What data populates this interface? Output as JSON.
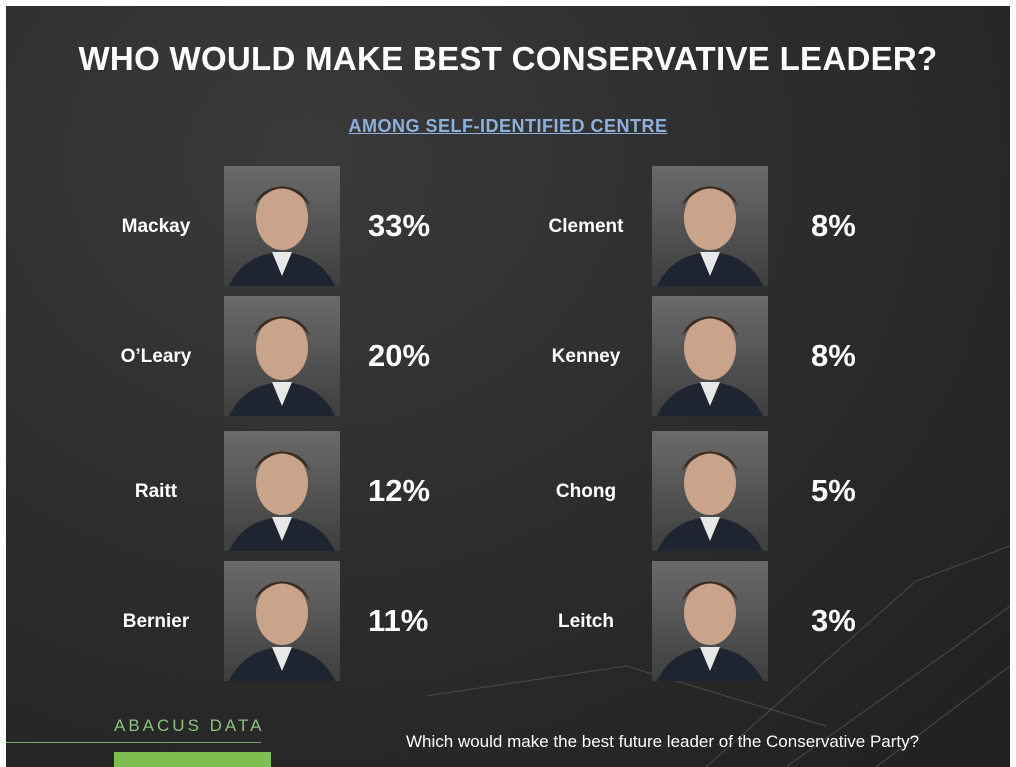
{
  "title": "WHO WOULD MAKE BEST CONSERVATIVE LEADER?",
  "subtitle": "AMONG SELF-IDENTIFIED CENTRE",
  "columns": [
    [
      {
        "name": "Mackay",
        "share": "33%"
      },
      {
        "name": "O’Leary",
        "share": "20%"
      },
      {
        "name": "Raitt",
        "share": "12%"
      },
      {
        "name": "Bernier",
        "share": "11%"
      }
    ],
    [
      {
        "name": "Clement",
        "share": "8%"
      },
      {
        "name": "Kenney",
        "share": "8%"
      },
      {
        "name": "Chong",
        "share": "5%"
      },
      {
        "name": "Leitch",
        "share": "3%"
      }
    ]
  ],
  "footer": {
    "logo": "ABACUS DATA",
    "question": "Which would make the best future leader of the Conservative Party?"
  }
}
